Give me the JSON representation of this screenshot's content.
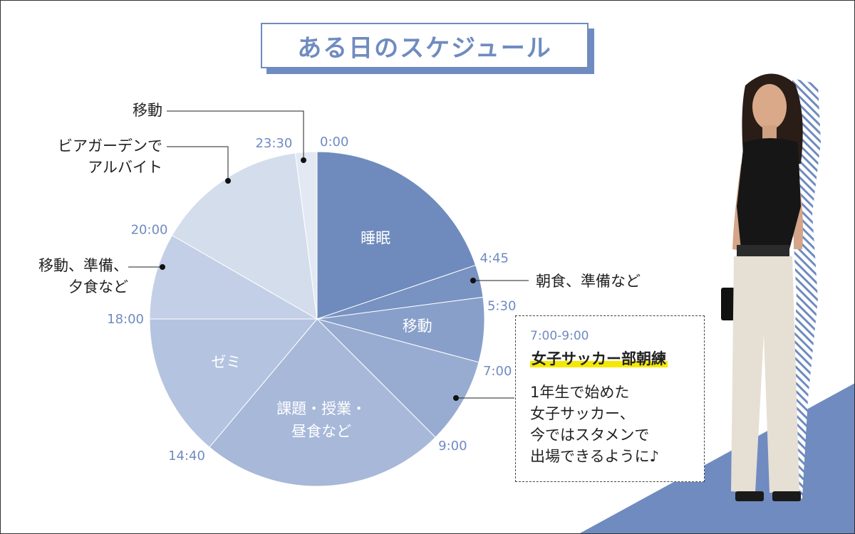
{
  "title": "ある日のスケジュール",
  "chart_data": {
    "type": "pie",
    "title": "ある日のスケジュール",
    "unit": "hours (24h clock)",
    "slices": [
      {
        "start": "0:00",
        "end": "4:45",
        "start_h": 0,
        "end_h": 4.75,
        "label": "睡眠",
        "color": "#6f8bbd"
      },
      {
        "start": "4:45",
        "end": "5:30",
        "start_h": 4.75,
        "end_h": 5.5,
        "label": "",
        "color": "#7892c1"
      },
      {
        "start": "5:30",
        "end": "7:00",
        "start_h": 5.5,
        "end_h": 7,
        "label": "移動",
        "color": "#889fca"
      },
      {
        "start": "7:00",
        "end": "9:00",
        "start_h": 7,
        "end_h": 9,
        "label": "",
        "color": "#98acd2"
      },
      {
        "start": "9:00",
        "end": "14:40",
        "start_h": 9,
        "end_h": 14.6667,
        "label": "課題・授業・\n昼食など",
        "color": "#a7b8d9"
      },
      {
        "start": "14:40",
        "end": "18:00",
        "start_h": 14.6667,
        "end_h": 18,
        "label": "ゼミ",
        "color": "#b4c3df"
      },
      {
        "start": "18:00",
        "end": "20:00",
        "start_h": 18,
        "end_h": 20,
        "label": "",
        "color": "#c3cfe6"
      },
      {
        "start": "20:00",
        "end": "23:30",
        "start_h": 20,
        "end_h": 23.5,
        "label": "",
        "color": "#d3ddec"
      },
      {
        "start": "23:30",
        "end": "0:00",
        "start_h": 23.5,
        "end_h": 24,
        "label": "",
        "color": "#e3e9f3"
      }
    ],
    "time_labels": [
      "0:00",
      "23:30",
      "4:45",
      "5:30",
      "7:00",
      "9:00",
      "14:40",
      "18:00",
      "20:00"
    ]
  },
  "annotations": {
    "move_night": "移動",
    "beer_line1": "ビアガーデンで",
    "beer_line2": "アルバイト",
    "evening_line1": "移動、準備、",
    "evening_line2": "夕食など",
    "breakfast": "朝食、準備など"
  },
  "info_box": {
    "time": "7:00-9:00",
    "title": "女子サッカー部朝練",
    "desc_lines": [
      "1年生で始めた",
      "女子サッカー、",
      "今ではスタメンで",
      "出場できるように♪"
    ]
  },
  "colors": {
    "accent": "#6f8bc0",
    "highlight": "#f5e800"
  }
}
